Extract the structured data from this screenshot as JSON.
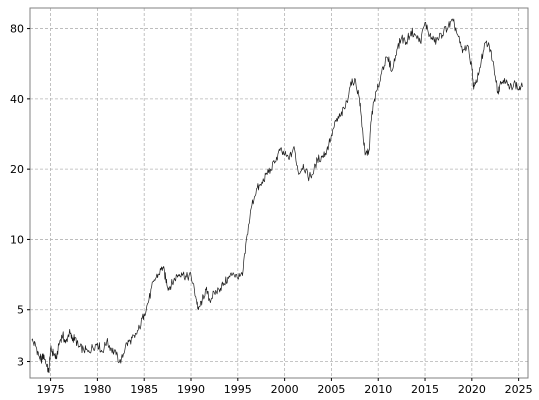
{
  "chart_data": {
    "type": "line",
    "title": "",
    "xlabel": "",
    "ylabel": "",
    "y_scale": "log",
    "xlim": [
      1972.8,
      2026.0
    ],
    "ylim": [
      2.55,
      98
    ],
    "grid": true,
    "legend": "none",
    "x_ticks": [
      {
        "value": 1975,
        "label": "1975"
      },
      {
        "value": 1980,
        "label": "1980"
      },
      {
        "value": 1985,
        "label": "1985"
      },
      {
        "value": 1990,
        "label": "1990"
      },
      {
        "value": 1995,
        "label": "1995"
      },
      {
        "value": 2000,
        "label": "2000"
      },
      {
        "value": 2005,
        "label": "2005"
      },
      {
        "value": 2010,
        "label": "2010"
      },
      {
        "value": 2015,
        "label": "2015"
      },
      {
        "value": 2020,
        "label": "2020"
      },
      {
        "value": 2025,
        "label": "2025"
      }
    ],
    "y_ticks": [
      {
        "value": 3,
        "label": "3"
      },
      {
        "value": 5,
        "label": "5"
      },
      {
        "value": 10,
        "label": "10"
      },
      {
        "value": 20,
        "label": "20"
      },
      {
        "value": 40,
        "label": "40"
      },
      {
        "value": 80,
        "label": "80"
      }
    ],
    "colors": {
      "line": "#1a1a1a",
      "grid": "#b4b4b4",
      "frame": "#808080"
    },
    "series": [
      {
        "x": [
          1973.0,
          1973.4,
          1973.8,
          1974.0,
          1974.3,
          1974.6,
          1974.8,
          1975.0,
          1975.3,
          1975.6,
          1976.0,
          1976.3,
          1976.6,
          1977.0,
          1977.3,
          1977.6,
          1978.0,
          1978.5,
          1979.0,
          1979.5,
          1980.0,
          1980.5,
          1981.0,
          1981.5,
          1982.0,
          1982.5,
          1983.0,
          1983.5,
          1984.0,
          1984.5,
          1985.0,
          1985.5,
          1986.0,
          1986.5,
          1987.0,
          1987.3,
          1987.6,
          1988.0,
          1988.5,
          1989.0,
          1989.5,
          1990.0,
          1990.5,
          1990.8,
          1991.2,
          1991.6,
          1992.0,
          1992.5,
          1993.0,
          1993.5,
          1994.0,
          1994.5,
          1995.0,
          1995.5,
          1996.0,
          1996.5,
          1997.0,
          1997.5,
          1998.0,
          1998.5,
          1999.0,
          1999.5,
          2000.0,
          2000.5,
          2001.0,
          2001.5,
          2002.0,
          2002.5,
          2003.0,
          2003.5,
          2004.0,
          2004.5,
          2005.0,
          2005.5,
          2006.0,
          2006.5,
          2007.0,
          2007.5,
          2008.0,
          2008.3,
          2008.6,
          2009.0,
          2009.3,
          2009.6,
          2010.0,
          2010.5,
          2011.0,
          2011.5,
          2012.0,
          2012.5,
          2013.0,
          2013.5,
          2014.0,
          2014.5,
          2015.0,
          2015.5,
          2016.0,
          2016.5,
          2017.0,
          2017.5,
          2018.0,
          2018.5,
          2019.0,
          2019.5,
          2020.0,
          2020.2,
          2020.5,
          2021.0,
          2021.5,
          2022.0,
          2022.5,
          2022.8,
          2023.0,
          2023.5,
          2024.0,
          2024.5,
          2025.0,
          2025.4
        ],
        "values": [
          3.7,
          3.5,
          3.15,
          3.05,
          3.2,
          2.85,
          2.7,
          3.4,
          3.25,
          3.1,
          3.7,
          3.9,
          3.6,
          4.0,
          3.75,
          3.8,
          3.45,
          3.4,
          3.3,
          3.45,
          3.6,
          3.3,
          3.65,
          3.4,
          3.2,
          2.95,
          3.5,
          3.7,
          3.8,
          4.2,
          4.8,
          5.5,
          6.6,
          7.1,
          7.6,
          6.8,
          6.2,
          6.5,
          7.0,
          7.2,
          6.9,
          7.0,
          5.7,
          5.0,
          5.5,
          6.1,
          5.5,
          5.9,
          6.1,
          6.5,
          6.8,
          7.2,
          6.8,
          7.0,
          10.5,
          14.0,
          16.5,
          17.0,
          19.0,
          20.0,
          21.5,
          24.0,
          23.0,
          22.0,
          25.0,
          19.0,
          21.0,
          18.5,
          19.0,
          22.0,
          22.5,
          24.0,
          28.0,
          32.0,
          34.0,
          37.0,
          45.0,
          49.0,
          40.0,
          30.0,
          23.0,
          24.0,
          34.0,
          40.0,
          45.0,
          55.0,
          60.0,
          53.0,
          65.0,
          73.0,
          70.0,
          78.0,
          75.0,
          70.0,
          85.0,
          75.0,
          70.0,
          73.0,
          78.0,
          82.0,
          86.0,
          75.0,
          63.0,
          68.0,
          55.0,
          44.0,
          47.0,
          58.0,
          70.0,
          65.0,
          50.0,
          43.0,
          46.0,
          49.0,
          44.0,
          47.0,
          44.0,
          45.0
        ]
      }
    ]
  }
}
